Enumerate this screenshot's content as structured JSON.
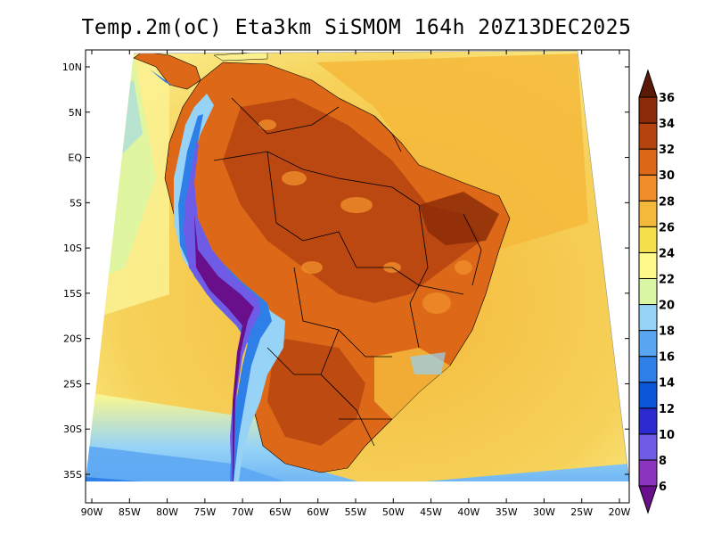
{
  "title": "Temp.2m(oC) Eta3km SiSMOM 164h 20Z13DEC2025",
  "map": {
    "lat_labels": [
      "10N",
      "5N",
      "EQ",
      "5S",
      "10S",
      "15S",
      "20S",
      "25S",
      "30S",
      "35S"
    ],
    "lon_labels": [
      "90W",
      "85W",
      "80W",
      "75W",
      "70W",
      "65W",
      "60W",
      "55W",
      "50W",
      "45W",
      "40W",
      "35W",
      "30W",
      "25W",
      "20W"
    ],
    "lat_values": [
      10,
      5,
      0,
      -5,
      -10,
      -15,
      -20,
      -25,
      -30,
      -35
    ],
    "lon_values": [
      -90,
      -85,
      -80,
      -75,
      -70,
      -65,
      -60,
      -55,
      -50,
      -45,
      -40,
      -35,
      -30,
      -25,
      -20
    ]
  },
  "colorbar": {
    "labels": [
      "6",
      "8",
      "10",
      "12",
      "14",
      "16",
      "18",
      "20",
      "22",
      "24",
      "26",
      "28",
      "30",
      "32",
      "34",
      "36"
    ],
    "levels": [
      6,
      8,
      10,
      12,
      14,
      16,
      18,
      20,
      22,
      24,
      26,
      28,
      30,
      32,
      34,
      36
    ],
    "colors": [
      "#6a0f8c",
      "#8b34bf",
      "#6f5ce6",
      "#2b2bd0",
      "#0a55d8",
      "#2f7fe8",
      "#5aa6f2",
      "#96d3f7",
      "#d8f6a4",
      "#fff98a",
      "#f6e14c",
      "#f4b93b",
      "#f08d2a",
      "#dd6918",
      "#b54310",
      "#8a2a08",
      "#5a1a05"
    ]
  }
}
